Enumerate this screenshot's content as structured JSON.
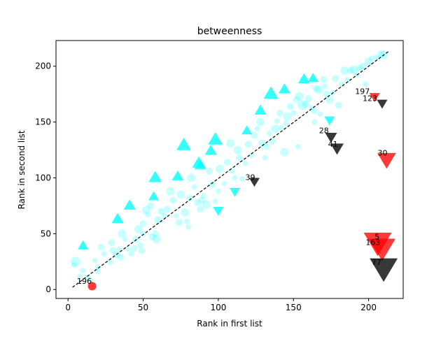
{
  "chart_data": {
    "type": "scatter",
    "title": "betweenness",
    "xlabel": "Rank in first list",
    "ylabel": "Rank in second list",
    "xlim": [
      -8,
      223
    ],
    "ylim": [
      -8,
      223
    ],
    "xticks": [
      0,
      50,
      100,
      150,
      200
    ],
    "yticks": [
      0,
      50,
      100,
      150,
      200
    ],
    "grid": false,
    "legend": "none",
    "reference_line": {
      "from": [
        3,
        2
      ],
      "to": [
        213,
        213
      ],
      "style": "dashed",
      "color": "#000000"
    },
    "colors": {
      "close": "#00ffff",
      "up": "#00ffff",
      "down": "#00ffff",
      "outlier_red": "#ff0000",
      "outlier_black": "#000000"
    },
    "series": [
      {
        "kind": "circle",
        "color": "#00ffff",
        "points": [
          [
            4,
            22,
            4
          ],
          [
            5,
            25,
            7
          ],
          [
            8,
            12,
            4
          ],
          [
            10,
            17,
            4
          ],
          [
            13,
            11,
            4
          ],
          [
            15,
            8,
            4
          ],
          [
            18,
            26,
            4
          ],
          [
            20,
            16,
            4
          ],
          [
            20,
            20,
            4
          ],
          [
            24,
            32,
            4
          ],
          [
            22,
            38,
            5
          ],
          [
            28,
            24,
            4
          ],
          [
            29,
            42,
            5
          ],
          [
            30,
            35,
            5
          ],
          [
            32,
            31,
            5
          ],
          [
            34,
            36,
            4
          ],
          [
            35,
            29,
            5
          ],
          [
            36,
            50,
            6
          ],
          [
            38,
            45,
            4
          ],
          [
            40,
            36,
            4
          ],
          [
            42,
            32,
            4
          ],
          [
            44,
            37,
            5
          ],
          [
            45,
            45,
            5
          ],
          [
            47,
            54,
            6
          ],
          [
            48,
            40,
            4
          ],
          [
            49,
            35,
            5
          ],
          [
            50,
            50,
            4
          ],
          [
            50,
            59,
            5
          ],
          [
            52,
            71,
            6
          ],
          [
            53,
            67,
            4
          ],
          [
            55,
            75,
            5
          ],
          [
            56,
            47,
            5
          ],
          [
            58,
            50,
            5
          ],
          [
            59,
            45,
            6
          ],
          [
            60,
            62,
            6
          ],
          [
            62,
            70,
            5
          ],
          [
            64,
            66,
            4
          ],
          [
            66,
            72,
            5
          ],
          [
            68,
            88,
            6
          ],
          [
            70,
            80,
            5
          ],
          [
            72,
            66,
            4
          ],
          [
            74,
            60,
            5
          ],
          [
            75,
            85,
            6
          ],
          [
            78,
            69,
            6
          ],
          [
            79,
            61,
            4
          ],
          [
            80,
            56,
            4
          ],
          [
            81,
            82,
            5
          ],
          [
            82,
            100,
            6
          ],
          [
            84,
            92,
            4
          ],
          [
            86,
            78,
            5
          ],
          [
            88,
            72,
            5
          ],
          [
            89,
            80,
            5
          ],
          [
            90,
            84,
            4
          ],
          [
            92,
            76,
            6
          ],
          [
            94,
            106,
            5
          ],
          [
            96,
            94,
            5
          ],
          [
            98,
            79,
            4
          ],
          [
            100,
            88,
            4
          ],
          [
            101,
            108,
            6
          ],
          [
            104,
            95,
            4
          ],
          [
            106,
            114,
            5
          ],
          [
            108,
            131,
            6
          ],
          [
            109,
            106,
            4
          ],
          [
            111,
            100,
            4
          ],
          [
            113,
            125,
            6
          ],
          [
            114,
            118,
            5
          ],
          [
            116,
            99,
            4
          ],
          [
            118,
            113,
            4
          ],
          [
            120,
            130,
            5
          ],
          [
            122,
            120,
            4
          ],
          [
            124,
            138,
            5
          ],
          [
            126,
            144,
            4
          ],
          [
            128,
            150,
            6
          ],
          [
            129,
            131,
            5
          ],
          [
            131,
            118,
            4
          ],
          [
            132,
            128,
            5
          ],
          [
            134,
            140,
            4
          ],
          [
            136,
            133,
            5
          ],
          [
            138,
            144,
            6
          ],
          [
            139,
            151,
            4
          ],
          [
            141,
            158,
            5
          ],
          [
            142,
            145,
            4
          ],
          [
            144,
            123,
            6
          ],
          [
            145,
            149,
            4
          ],
          [
            146,
            155,
            6
          ],
          [
            148,
            164,
            5
          ],
          [
            150,
            158,
            4
          ],
          [
            152,
            170,
            5
          ],
          [
            153,
            128,
            4
          ],
          [
            154,
            173,
            6
          ],
          [
            156,
            165,
            7
          ],
          [
            158,
            166,
            5
          ],
          [
            160,
            171,
            5
          ],
          [
            162,
            163,
            4
          ],
          [
            164,
            160,
            5
          ],
          [
            164,
            150,
            4
          ],
          [
            165,
            180,
            5
          ],
          [
            167,
            179,
            6
          ],
          [
            168,
            157,
            4
          ],
          [
            170,
            188,
            5
          ],
          [
            171,
            182,
            4
          ],
          [
            172,
            175,
            5
          ],
          [
            174,
            170,
            6
          ],
          [
            176,
            176,
            4
          ],
          [
            178,
            189,
            5
          ],
          [
            180,
            165,
            5
          ],
          [
            182,
            184,
            4
          ],
          [
            184,
            196,
            6
          ],
          [
            186,
            188,
            4
          ],
          [
            188,
            196,
            5
          ],
          [
            190,
            197,
            6
          ],
          [
            192,
            192,
            4
          ],
          [
            194,
            198,
            5
          ],
          [
            196,
            200,
            5
          ],
          [
            198,
            184,
            4
          ],
          [
            200,
            204,
            6
          ],
          [
            202,
            207,
            4
          ],
          [
            205,
            208,
            4
          ],
          [
            208,
            211,
            5
          ],
          [
            210,
            210,
            6
          ]
        ]
      },
      {
        "kind": "triangle-up",
        "color": "#00ffff",
        "points": [
          [
            10,
            39,
            8
          ],
          [
            33,
            63,
            9
          ],
          [
            41,
            75,
            9
          ],
          [
            57,
            83,
            8
          ],
          [
            58,
            100,
            10
          ],
          [
            73,
            101,
            9
          ],
          [
            77,
            129,
            11
          ],
          [
            87,
            113,
            10
          ],
          [
            88,
            111,
            9
          ],
          [
            95,
            124,
            9
          ],
          [
            98,
            134,
            11
          ],
          [
            119,
            142,
            8
          ],
          [
            128,
            160,
            9
          ],
          [
            135,
            175,
            11
          ],
          [
            144,
            179,
            9
          ],
          [
            157,
            188,
            9
          ],
          [
            163,
            189,
            8
          ]
        ]
      },
      {
        "kind": "triangle-down",
        "color": "#00ffff",
        "points": [
          [
            100,
            71,
            8
          ],
          [
            111,
            88,
            8
          ],
          [
            174,
            152,
            8
          ]
        ]
      },
      {
        "kind": "circle",
        "color": "#ff0000",
        "label": "196",
        "points": [
          [
            16,
            3,
            6
          ]
        ]
      },
      {
        "kind": "triangle-down",
        "color": "#ff0000",
        "labels": [
          "197",
          "30",
          "5",
          "163"
        ],
        "points": [
          [
            204,
            173,
            8
          ],
          [
            212,
            117,
            14
          ],
          [
            206,
            43,
            21
          ],
          [
            209,
            38,
            20
          ]
        ]
      },
      {
        "kind": "triangle-down",
        "color": "#000000",
        "labels": [
          "123",
          "39",
          "28",
          "41",
          "77"
        ],
        "points": [
          [
            209,
            167,
            8
          ],
          [
            124,
            97,
            8
          ],
          [
            175,
            137,
            9
          ],
          [
            179,
            127,
            10
          ],
          [
            210,
            20,
            21
          ]
        ]
      }
    ],
    "point_labels": [
      {
        "text": "196",
        "x": 6,
        "y": 5
      },
      {
        "text": "197",
        "x": 191,
        "y": 175
      },
      {
        "text": "123",
        "x": 196,
        "y": 169
      },
      {
        "text": "39",
        "x": 118,
        "y": 98
      },
      {
        "text": "28",
        "x": 167,
        "y": 140
      },
      {
        "text": "41",
        "x": 173,
        "y": 128
      },
      {
        "text": "30",
        "x": 206,
        "y": 120
      },
      {
        "text": "5",
        "x": 204,
        "y": 45
      },
      {
        "text": "163",
        "x": 198,
        "y": 40
      },
      {
        "text": "77",
        "x": 202,
        "y": 22
      }
    ]
  }
}
